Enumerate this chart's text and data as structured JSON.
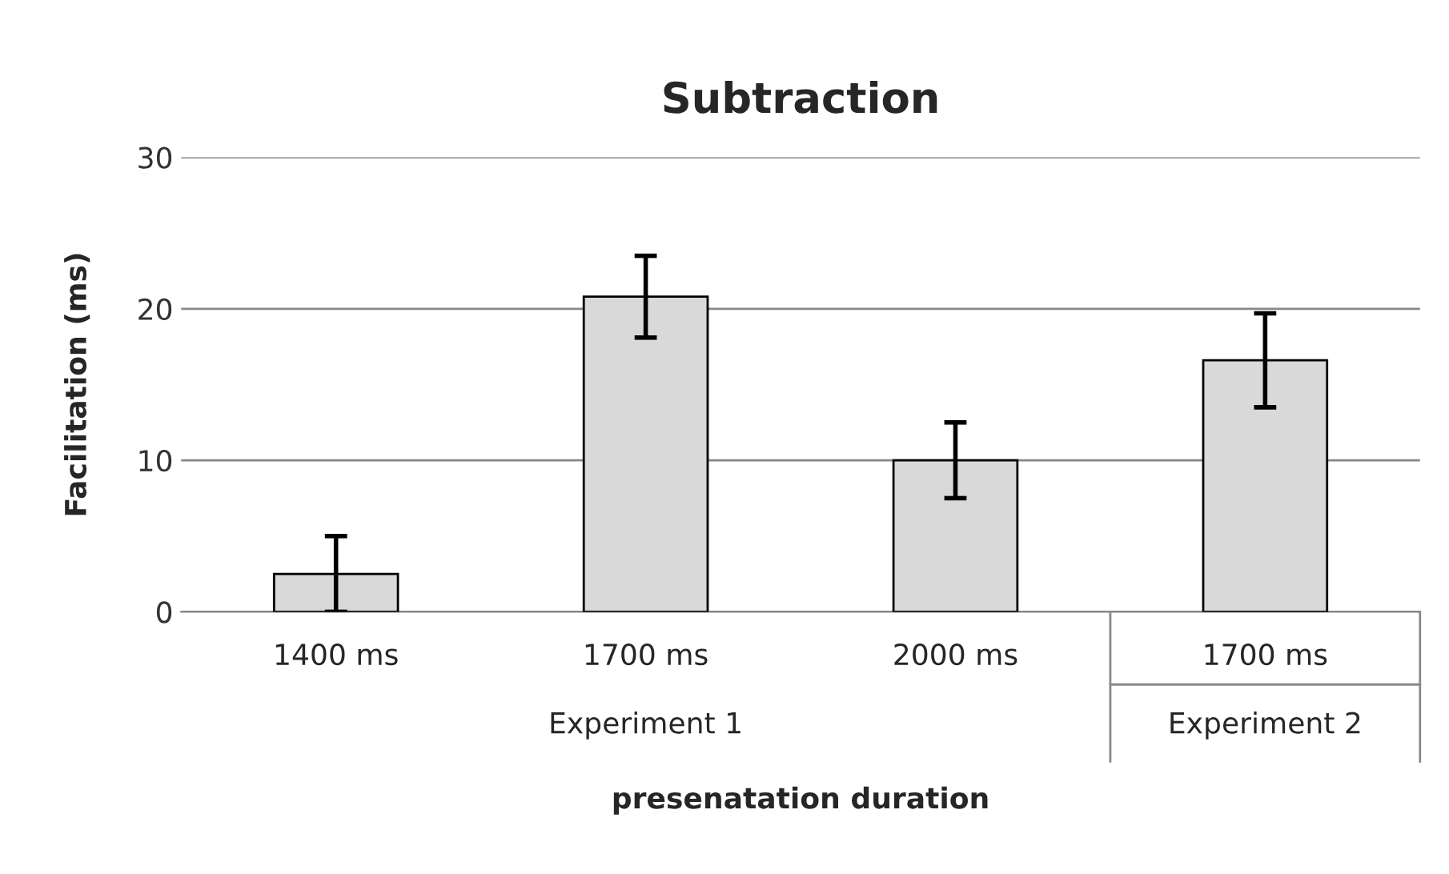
{
  "chart_data": {
    "type": "bar",
    "title": "Subtraction",
    "xlabel": "presenatation duration",
    "ylabel": "Facilitation (ms)",
    "categories": [
      "1400 ms",
      "1700 ms",
      "2000 ms",
      "1700 ms"
    ],
    "values": [
      2.5,
      20.8,
      10.0,
      16.6
    ],
    "errors": [
      2.5,
      2.7,
      2.5,
      3.1
    ],
    "color": "#d9d9d9",
    "annotations": [
      "Experiment 1",
      "Experiment 2"
    ],
    "ylim": [
      0,
      30
    ],
    "yticks": [
      0,
      10,
      20,
      30
    ],
    "grid": "y",
    "legend": false
  }
}
